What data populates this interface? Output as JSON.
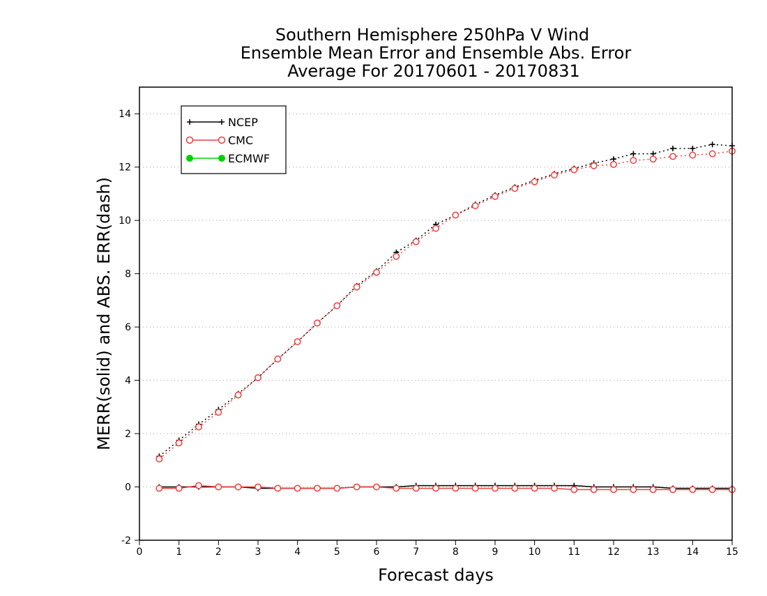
{
  "chart_data": {
    "type": "line",
    "title": [
      "Southern Hemisphere 250hPa V Wind",
      "Ensemble Mean Error and Ensemble Abs. Error",
      "Average For 20170601 - 20170831"
    ],
    "xlabel": "Forecast days",
    "ylabel": "MERR(solid) and ABS. ERR(dash)",
    "xlim": [
      0,
      15
    ],
    "ylim": [
      -2,
      15
    ],
    "xticks": [
      0,
      1,
      2,
      3,
      4,
      5,
      6,
      7,
      8,
      9,
      10,
      11,
      12,
      13,
      14,
      15
    ],
    "yticks": [
      -2,
      0,
      2,
      4,
      6,
      8,
      10,
      12,
      14
    ],
    "grid": "horizontal dotted",
    "legend_position": "top-left",
    "x": [
      0.5,
      1,
      1.5,
      2,
      2.5,
      3,
      3.5,
      4,
      4.5,
      5,
      5.5,
      6,
      6.5,
      7,
      7.5,
      8,
      8.5,
      9,
      9.5,
      10,
      10.5,
      11,
      11.5,
      12,
      12.5,
      13,
      13.5,
      14,
      14.5,
      15
    ],
    "series": [
      {
        "name": "NCEP",
        "color": "#000000",
        "marker": "plus",
        "abs_error": [
          1.15,
          1.75,
          2.35,
          2.9,
          3.5,
          4.1,
          4.8,
          5.45,
          6.15,
          6.8,
          7.55,
          8.1,
          8.8,
          9.25,
          9.85,
          10.2,
          10.6,
          10.95,
          11.25,
          11.5,
          11.75,
          11.95,
          12.15,
          12.3,
          12.5,
          12.5,
          12.7,
          12.7,
          12.85,
          12.8
        ],
        "mean_error": [
          0.0,
          0.0,
          0.0,
          0.0,
          0.0,
          -0.05,
          -0.05,
          -0.05,
          -0.05,
          -0.05,
          0.0,
          0.0,
          0.0,
          0.05,
          0.05,
          0.05,
          0.05,
          0.05,
          0.05,
          0.05,
          0.05,
          0.05,
          0.0,
          0.0,
          0.0,
          0.0,
          -0.05,
          -0.05,
          -0.05,
          -0.05
        ]
      },
      {
        "name": "CMC",
        "color": "#f03c3c",
        "marker": "open-circle",
        "abs_error": [
          1.05,
          1.65,
          2.25,
          2.8,
          3.45,
          4.1,
          4.8,
          5.45,
          6.15,
          6.8,
          7.5,
          8.05,
          8.65,
          9.2,
          9.7,
          10.2,
          10.55,
          10.9,
          11.2,
          11.45,
          11.7,
          11.9,
          12.05,
          12.1,
          12.25,
          12.3,
          12.4,
          12.45,
          12.5,
          12.6
        ],
        "mean_error": [
          -0.05,
          -0.05,
          0.05,
          0.0,
          0.0,
          0.0,
          -0.05,
          -0.05,
          -0.05,
          -0.05,
          0.0,
          0.0,
          -0.05,
          -0.05,
          -0.05,
          -0.05,
          -0.05,
          -0.05,
          -0.05,
          -0.05,
          -0.05,
          -0.1,
          -0.1,
          -0.1,
          -0.1,
          -0.1,
          -0.1,
          -0.1,
          -0.1,
          -0.1
        ]
      },
      {
        "name": "ECMWF",
        "color": "#00d200",
        "marker": "filled-circle",
        "abs_error": [],
        "mean_error": []
      }
    ]
  }
}
